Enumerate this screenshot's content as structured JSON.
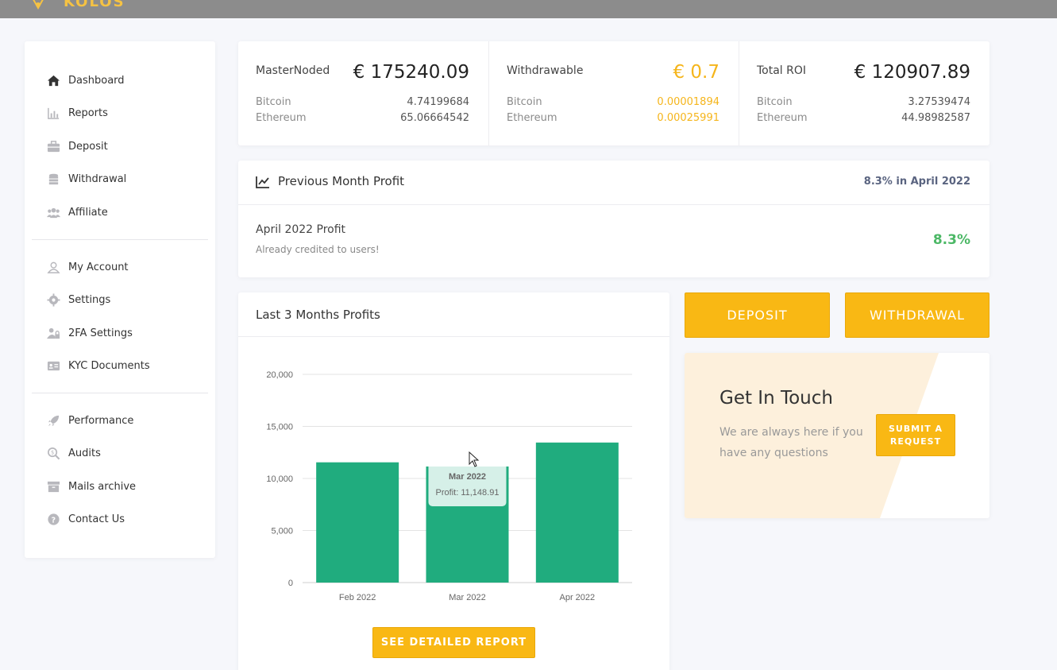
{
  "brand": {
    "logo_text": "KOLOS"
  },
  "sidebar": {
    "group1": [
      {
        "label": "Dashboard",
        "icon": "home-icon"
      },
      {
        "label": "Reports",
        "icon": "bar-chart-icon"
      },
      {
        "label": "Deposit",
        "icon": "briefcase-icon"
      },
      {
        "label": "Withdrawal",
        "icon": "coins-icon"
      },
      {
        "label": "Affiliate",
        "icon": "users-icon"
      }
    ],
    "group2": [
      {
        "label": "My Account",
        "icon": "user-icon"
      },
      {
        "label": "Settings",
        "icon": "gear-icon"
      },
      {
        "label": "2FA Settings",
        "icon": "user-lock-icon"
      },
      {
        "label": "KYC Documents",
        "icon": "id-card-icon"
      }
    ],
    "group3": [
      {
        "label": "Performance",
        "icon": "rocket-icon"
      },
      {
        "label": "Audits",
        "icon": "search-dollar-icon"
      },
      {
        "label": "Mails archive",
        "icon": "archive-icon"
      },
      {
        "label": "Contact Us",
        "icon": "question-icon"
      }
    ]
  },
  "stats": [
    {
      "label": "MasterNoded",
      "amount": "€ 175240.09",
      "rows": [
        {
          "name": "Bitcoin",
          "value": "4.74199684"
        },
        {
          "name": "Ethereum",
          "value": "65.06664542"
        }
      ]
    },
    {
      "label": "Withdrawable",
      "amount": "€ 0.7",
      "rows": [
        {
          "name": "Bitcoin",
          "value": "0.00001894"
        },
        {
          "name": "Ethereum",
          "value": "0.00025991"
        }
      ]
    },
    {
      "label": "Total ROI",
      "amount": "€ 120907.89",
      "rows": [
        {
          "name": "Bitcoin",
          "value": "3.27539474"
        },
        {
          "name": "Ethereum",
          "value": "44.98982587"
        }
      ]
    }
  ],
  "previous_month": {
    "title": "Previous Month Profit",
    "summary": "8.3% in April 2022",
    "profit_title": "April 2022 Profit",
    "profit_sub": "Already credited to users!",
    "profit_value": "8.3%"
  },
  "profits_chart": {
    "title": "Last 3 Months Profits",
    "button": "SEE DETAILED REPORT"
  },
  "chart_data": {
    "type": "bar",
    "categories": [
      "Feb 2022",
      "Mar 2022",
      "Apr 2022"
    ],
    "series": [
      {
        "name": "Profit",
        "values": [
          11550,
          11148.91,
          13450
        ]
      }
    ],
    "ylim": [
      0,
      20000
    ],
    "yticks": [
      "0",
      "5,000",
      "10,000",
      "15,000",
      "20,000"
    ],
    "grid": true,
    "bar_color": "#20ac7e",
    "tooltip": {
      "title": "Mar 2022",
      "text": "Profit: 11,148.91"
    }
  },
  "actions": {
    "deposit": "DEPOSIT",
    "withdrawal": "WITHDRAWAL"
  },
  "touch": {
    "title": "Get In Touch",
    "text": "We are always here if you have any questions",
    "button": "SUBMIT A REQUEST"
  },
  "colors": {
    "accent": "#f9b814",
    "bar": "#20ac7e",
    "positive": "#4cb866"
  }
}
